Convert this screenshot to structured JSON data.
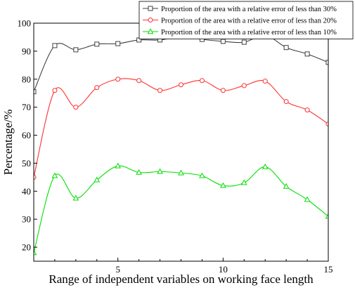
{
  "chart_data": {
    "type": "line",
    "xlabel": "Range of independent variables on working face length",
    "ylabel": "Percentage/%",
    "xlim": [
      1,
      15
    ],
    "ylim": [
      15,
      100
    ],
    "x_ticks": [
      5,
      10,
      15
    ],
    "y_ticks": [
      20,
      30,
      40,
      50,
      60,
      70,
      80,
      90,
      100
    ],
    "grid": false,
    "legend_position": "top-right",
    "smoothed": true,
    "series": [
      {
        "name": "Proportion of the area with a relative error of less than 30%",
        "color": "#404040",
        "marker": "square",
        "x": [
          1,
          2,
          3,
          4,
          5,
          6,
          7,
          8,
          9,
          10,
          11,
          12,
          13,
          14,
          15
        ],
        "values": [
          75.5,
          92,
          90.5,
          92.5,
          92.7,
          94,
          94,
          95.3,
          94.2,
          93.5,
          93.2,
          95.7,
          91.3,
          89,
          86
        ]
      },
      {
        "name": "Proportion of the area with a relative error of less than 20%",
        "color": "#ff3030",
        "marker": "circle",
        "x": [
          1,
          2,
          3,
          4,
          5,
          6,
          7,
          8,
          9,
          10,
          11,
          12,
          13,
          14,
          15
        ],
        "values": [
          45,
          76,
          70,
          77,
          80,
          79.5,
          76,
          78,
          79.5,
          76,
          77.7,
          79.3,
          72,
          69,
          64
        ]
      },
      {
        "name": "Proportion of the area with a relative error of less than 10%",
        "color": "#00e000",
        "marker": "triangle",
        "x": [
          1,
          2,
          3,
          4,
          5,
          6,
          7,
          8,
          9,
          10,
          11,
          12,
          13,
          14,
          15
        ],
        "values": [
          18,
          45.5,
          37.5,
          44,
          49,
          46.7,
          47,
          46.5,
          45.5,
          42,
          43,
          48.7,
          41.7,
          37,
          31
        ]
      }
    ]
  }
}
